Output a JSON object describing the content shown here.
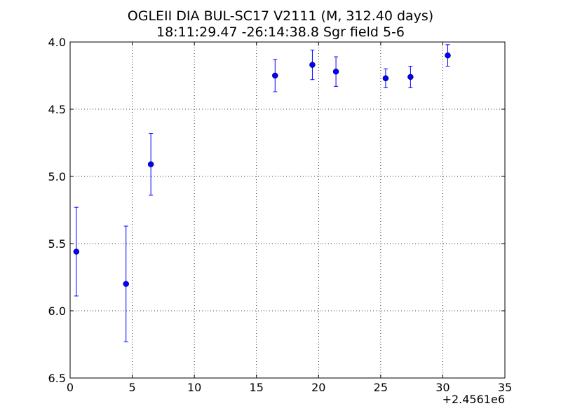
{
  "chart_data": {
    "type": "scatter",
    "title": "OGLEII DIA BUL-SC17 V2111  (M, 312.40 days)",
    "subtitle": "18:11:29.47 -26:14:38.8 Sgr field 5-6",
    "xlabel": "",
    "ylabel": "",
    "x_offset_label": "+2.4561e6",
    "xlim": [
      0,
      35
    ],
    "ylim": [
      6.5,
      4.0
    ],
    "y_inverted": true,
    "grid": true,
    "x_ticks": [
      0,
      5,
      10,
      15,
      20,
      25,
      30,
      35
    ],
    "x_tick_labels": [
      "0",
      "5",
      "10",
      "15",
      "20",
      "25",
      "30",
      "35"
    ],
    "y_ticks": [
      4.0,
      4.5,
      5.0,
      5.5,
      6.0,
      6.5
    ],
    "y_tick_labels": [
      "4.0",
      "4.5",
      "5.0",
      "5.5",
      "6.0",
      "6.5"
    ],
    "color": "#0000ff",
    "points": [
      {
        "x": 0.5,
        "y": 5.56,
        "err": 0.33
      },
      {
        "x": 4.5,
        "y": 5.8,
        "err": 0.43
      },
      {
        "x": 6.5,
        "y": 4.91,
        "err": 0.23
      },
      {
        "x": 16.5,
        "y": 4.25,
        "err": 0.12
      },
      {
        "x": 19.5,
        "y": 4.17,
        "err": 0.11
      },
      {
        "x": 21.4,
        "y": 4.22,
        "err": 0.11
      },
      {
        "x": 25.4,
        "y": 4.27,
        "err": 0.07
      },
      {
        "x": 27.4,
        "y": 4.26,
        "err": 0.08
      },
      {
        "x": 30.4,
        "y": 4.1,
        "err": 0.08
      }
    ]
  }
}
